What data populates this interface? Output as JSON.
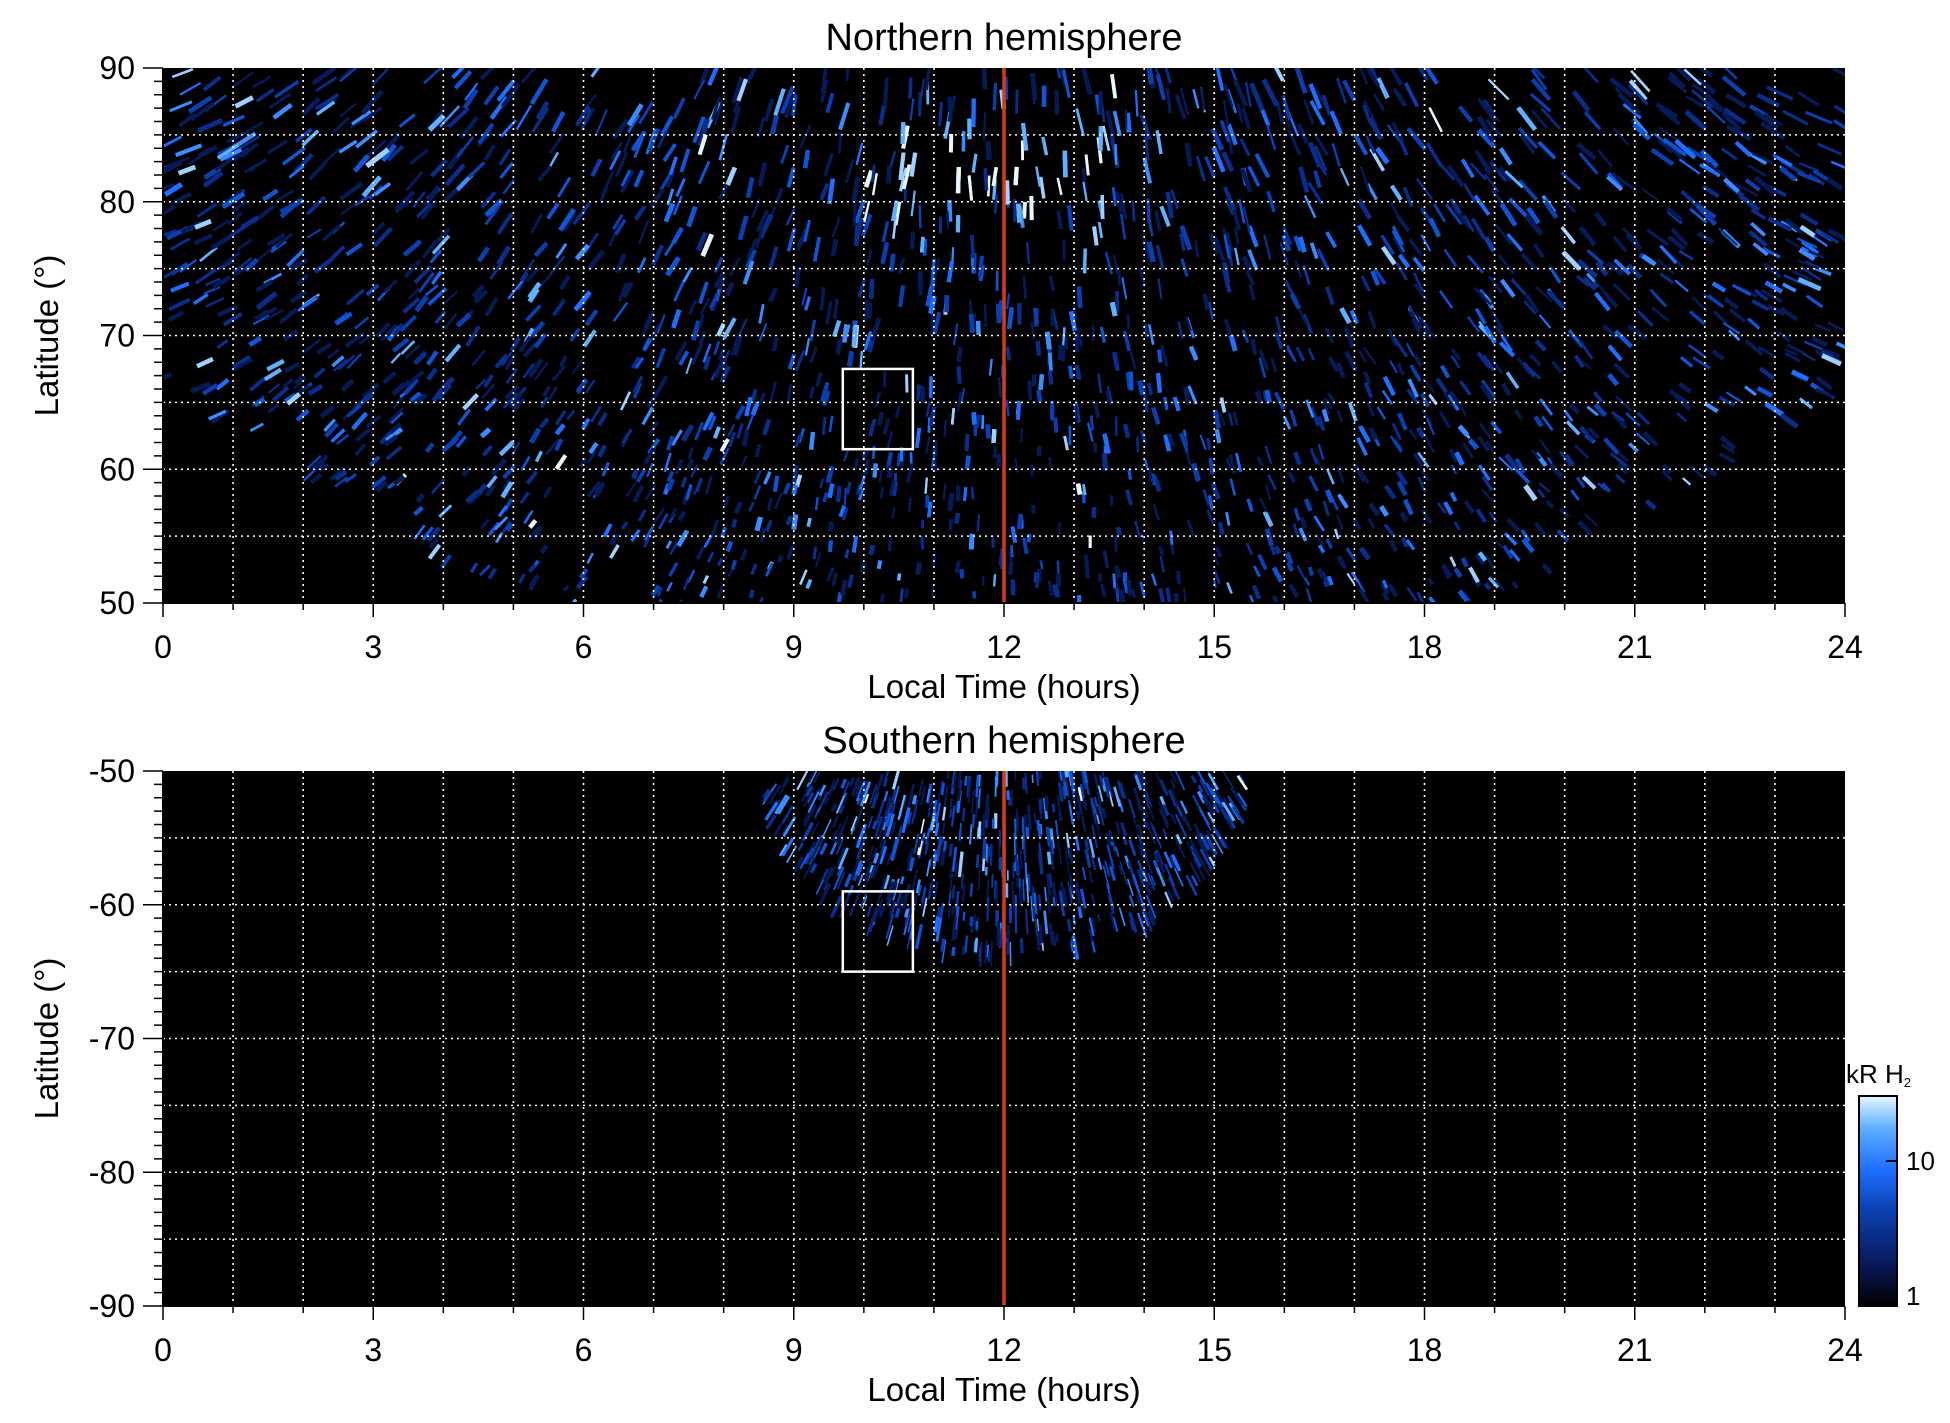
{
  "colorbar": {
    "unit": "kR",
    "species": "H",
    "subscript": "2",
    "ticks": [
      "10",
      "1"
    ],
    "colors": [
      "#000000",
      "#0a1a5a",
      "#0b3fb0",
      "#1e6fff",
      "#5fb0ff",
      "#e8f6ff"
    ]
  },
  "chart_data": [
    {
      "type": "heatmap",
      "title": "Northern hemisphere",
      "xlabel": "Local Time (hours)",
      "ylabel": "Latitude (°)",
      "xlim": [
        0,
        24
      ],
      "ylim": [
        50,
        90
      ],
      "xticks": [
        "0",
        "3",
        "6",
        "9",
        "12",
        "15",
        "18",
        "21",
        "24"
      ],
      "yticks": [
        "50",
        "60",
        "70",
        "80",
        "90"
      ],
      "grid": true,
      "noon_line_x": 12,
      "noon_line_color": "#d63a1e",
      "box": {
        "x": [
          9.7,
          10.7
        ],
        "y": [
          61.5,
          67.5
        ]
      },
      "coverage": "emission over most local times; data gap below ~65° near 0–4 h and 19–24 h",
      "bright_region": {
        "x": [
          10.0,
          13.5
        ],
        "y": [
          79,
          86
        ]
      }
    },
    {
      "type": "heatmap",
      "title": "Southern hemisphere",
      "xlabel": "Local Time (hours)",
      "ylabel": "Latitude (°)",
      "xlim": [
        0,
        24
      ],
      "ylim": [
        -90,
        -50
      ],
      "xticks": [
        "0",
        "3",
        "6",
        "9",
        "12",
        "15",
        "18",
        "21",
        "24"
      ],
      "yticks": [
        "-50",
        "-60",
        "-70",
        "-80",
        "-90"
      ],
      "grid": true,
      "noon_line_x": 12,
      "noon_line_color": "#d63a1e",
      "box": {
        "x": [
          9.7,
          10.7
        ],
        "y": [
          -65,
          -59
        ]
      },
      "coverage": "emission only within ~8.5–15.5 h local time, latitudes -50° to ~-64°"
    }
  ]
}
